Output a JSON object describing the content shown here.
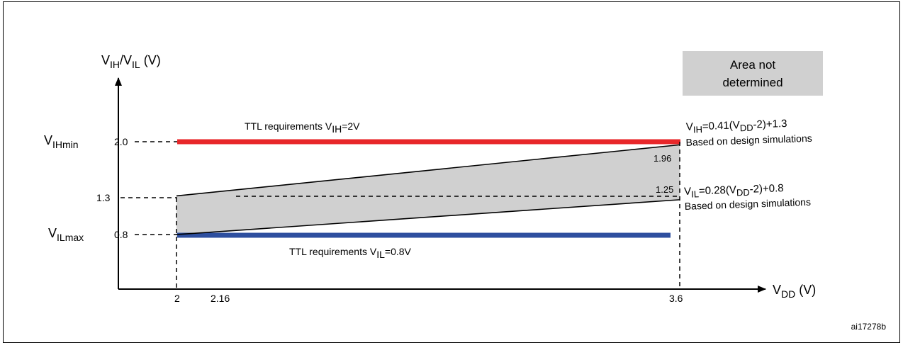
{
  "figure_id": "ai17278b",
  "legend": {
    "text_line1": "Area not",
    "text_line2": "determined",
    "color": "#d0d0d0"
  },
  "y_axis": {
    "label_main": "V",
    "label_sub1": "IH",
    "label_sep": "/V",
    "label_sub2": "IL",
    "label_unit": " (V)",
    "ticks": [
      {
        "value": 2.0,
        "text": "2.0",
        "name_main": "V",
        "name_sub": "IHmin"
      },
      {
        "value": 1.3,
        "text": "1.3",
        "name_main": "",
        "name_sub": ""
      },
      {
        "value": 0.8,
        "text": "0.8",
        "name_main": "V",
        "name_sub": "ILmax"
      }
    ]
  },
  "x_axis": {
    "label_main": "V",
    "label_sub": "DD",
    "label_unit": " (V)",
    "ticks": [
      {
        "value": 2,
        "text": "2"
      },
      {
        "value": 2.16,
        "text": "2.16"
      },
      {
        "value": 3.6,
        "text": "3.6"
      }
    ]
  },
  "ttl_high": {
    "prefix": "TTL requirements  V",
    "sub": "IH",
    "suffix": "=2V",
    "value": 2.0,
    "color": "#e8272a"
  },
  "ttl_low": {
    "prefix": "TTL requirements   V",
    "sub": "IL",
    "suffix": "=0.8V",
    "value": 0.8,
    "color": "#2e4f9f"
  },
  "vih_formula": {
    "p1": "V",
    "s1": "IH",
    "p2": "=0.41(V",
    "s2": "DD",
    "p3": "-2)+1.3",
    "note": "Based on design simulations"
  },
  "vil_formula": {
    "p1": "V",
    "s1": "IL",
    "p2": "=0.28(V",
    "s2": "DD",
    "p3": "-2)+0.8",
    "note": "Based on design simulations"
  },
  "value_labels": {
    "v196": "1.96",
    "v125": "1.25"
  },
  "chart_data": {
    "type": "area",
    "xlabel": "VDD (V)",
    "ylabel": "VIH/VIL (V)",
    "series": [
      {
        "name": "TTL requirements VIH=2V",
        "x": [
          2,
          3.6
        ],
        "y": [
          2.0,
          2.0
        ]
      },
      {
        "name": "TTL requirements VIL=0.8V",
        "x": [
          2,
          3.6
        ],
        "y": [
          0.8,
          0.8
        ]
      },
      {
        "name": "VIH=0.41(VDD-2)+1.3",
        "x": [
          2,
          3.6
        ],
        "y": [
          1.3,
          1.96
        ]
      },
      {
        "name": "VIL=0.28(VDD-2)+0.8",
        "x": [
          2,
          3.6
        ],
        "y": [
          0.8,
          1.25
        ]
      }
    ],
    "shaded_region": "Area not determined"
  }
}
